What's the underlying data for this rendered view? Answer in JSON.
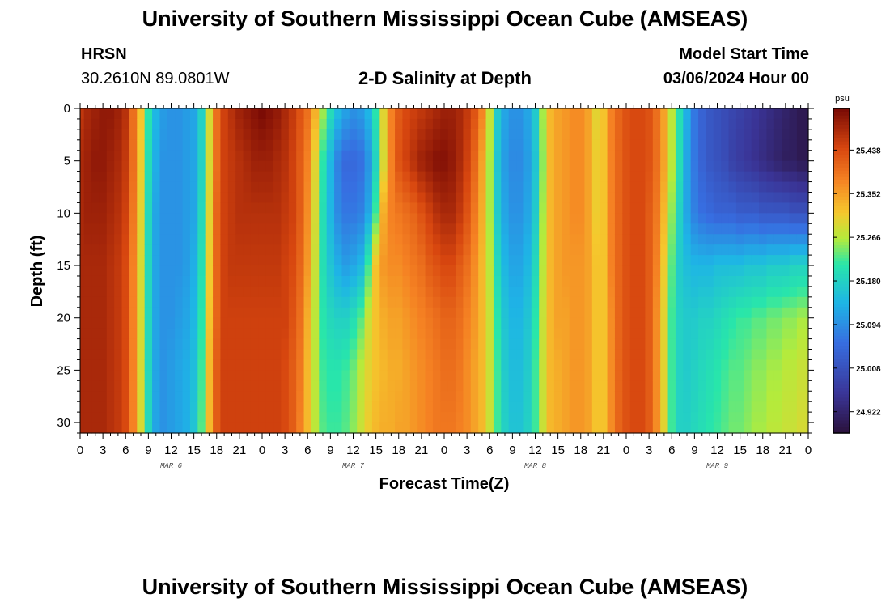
{
  "page": {
    "title": "University of Southern Mississippi Ocean Cube (AMSEAS)",
    "footer_title": "University of Southern Mississippi Ocean Cube (AMSEAS)",
    "station_name": "HRSN",
    "coordinates": "30.2610N  89.0801W",
    "model_start_label": "Model Start Time",
    "model_start_value": "03/06/2024 Hour 00"
  },
  "chart_data": {
    "type": "heatmap",
    "title": "2-D Salinity at Depth",
    "xlabel": "Forecast Time(Z)",
    "ylabel": "Depth (ft)",
    "units": "psu",
    "x_tick_labels": [
      "0",
      "3",
      "6",
      "9",
      "12",
      "15",
      "18",
      "21",
      "0",
      "3",
      "6",
      "9",
      "12",
      "15",
      "18",
      "21",
      "0",
      "3",
      "6",
      "9",
      "12",
      "15",
      "18",
      "21",
      "0",
      "3",
      "6",
      "9",
      "12",
      "15",
      "18",
      "21",
      "0"
    ],
    "x_range_hours": [
      0,
      96
    ],
    "day_labels": [
      {
        "label": "MAR 6",
        "hour": 12
      },
      {
        "label": "MAR 7",
        "hour": 36
      },
      {
        "label": "MAR 8",
        "hour": 60
      },
      {
        "label": "MAR 9",
        "hour": 84
      }
    ],
    "y_ticks": [
      0,
      5,
      10,
      15,
      20,
      25,
      30
    ],
    "y_range_ft": [
      0,
      31
    ],
    "colorbar_ticks": [
      24.922,
      25.008,
      25.094,
      25.18,
      25.266,
      25.352,
      25.438
    ],
    "colorbar_tick_labels": [
      "24.922",
      "25.008",
      "25.094",
      "25.180",
      "25.266",
      "25.352",
      "25.438"
    ],
    "color_range": [
      24.88,
      25.52
    ],
    "depth_rows_ft": [
      0,
      5,
      10,
      15,
      20,
      25,
      31
    ],
    "hour_columns": [
      0,
      1,
      2,
      3,
      4,
      5,
      6,
      7,
      8,
      9,
      10,
      11,
      12,
      13,
      14,
      15,
      16,
      17,
      18,
      19,
      20,
      21,
      22,
      23,
      24,
      25,
      26,
      27,
      28,
      29,
      30,
      31,
      32,
      33,
      34,
      35,
      36,
      37,
      38,
      39,
      40,
      41,
      42,
      43,
      44,
      45,
      46,
      47,
      48,
      49,
      50,
      51,
      52,
      53,
      54,
      55,
      56,
      57,
      58,
      59,
      60,
      61,
      62,
      63,
      64,
      65,
      66,
      67,
      68,
      69,
      70,
      71,
      72,
      73,
      74,
      75,
      76,
      77,
      78,
      79,
      80,
      81,
      82,
      83,
      84,
      85,
      86,
      87,
      88,
      89,
      90,
      91,
      92,
      93,
      94,
      95,
      96
    ],
    "salinity_psu": [
      [
        25.46,
        25.48,
        25.49,
        25.5,
        25.5,
        25.49,
        25.47,
        25.4,
        25.32,
        25.21,
        25.14,
        25.11,
        25.1,
        25.1,
        25.11,
        25.12,
        25.18,
        25.29,
        25.4,
        25.45,
        25.47,
        25.49,
        25.5,
        25.51,
        25.52,
        25.51,
        25.5,
        25.48,
        25.46,
        25.43,
        25.4,
        25.34,
        25.26,
        25.2,
        25.15,
        25.12,
        25.1,
        25.11,
        25.14,
        25.21,
        25.3,
        25.38,
        25.42,
        25.44,
        25.45,
        25.46,
        25.47,
        25.48,
        25.49,
        25.49,
        25.48,
        25.46,
        25.43,
        25.38,
        25.28,
        25.17,
        25.12,
        25.1,
        25.1,
        25.12,
        25.17,
        25.26,
        25.33,
        25.35,
        25.36,
        25.37,
        25.37,
        25.35,
        25.3,
        25.32,
        25.38,
        25.41,
        25.43,
        25.44,
        25.44,
        25.43,
        25.4,
        25.35,
        25.27,
        25.2,
        25.13,
        25.07,
        25.04,
        25.02,
        25.01,
        25.0,
        24.99,
        24.98,
        24.97,
        24.96,
        24.95,
        24.94,
        24.93,
        24.92,
        24.91,
        24.9,
        24.9
      ],
      [
        25.48,
        25.49,
        25.5,
        25.5,
        25.49,
        25.48,
        25.46,
        25.4,
        25.31,
        25.2,
        25.13,
        25.1,
        25.1,
        25.1,
        25.11,
        25.12,
        25.18,
        25.29,
        25.4,
        25.45,
        25.46,
        25.47,
        25.48,
        25.49,
        25.49,
        25.49,
        25.48,
        25.47,
        25.45,
        25.42,
        25.38,
        25.3,
        25.21,
        25.14,
        25.08,
        25.05,
        25.05,
        25.06,
        25.1,
        25.18,
        25.29,
        25.38,
        25.43,
        25.45,
        25.47,
        25.49,
        25.5,
        25.51,
        25.51,
        25.5,
        25.48,
        25.45,
        25.41,
        25.35,
        25.26,
        25.16,
        25.11,
        25.09,
        25.09,
        25.11,
        25.16,
        25.25,
        25.33,
        25.35,
        25.36,
        25.37,
        25.37,
        25.35,
        25.31,
        25.32,
        25.38,
        25.41,
        25.43,
        25.44,
        25.44,
        25.43,
        25.4,
        25.35,
        25.27,
        25.2,
        25.12,
        25.07,
        25.04,
        25.02,
        25.01,
        25.0,
        24.98,
        24.97,
        24.96,
        24.95,
        24.94,
        24.93,
        24.92,
        24.91,
        24.91,
        24.9,
        24.9
      ],
      [
        25.48,
        25.49,
        25.49,
        25.49,
        25.48,
        25.47,
        25.45,
        25.39,
        25.3,
        25.19,
        25.12,
        25.1,
        25.1,
        25.1,
        25.11,
        25.12,
        25.19,
        25.3,
        25.41,
        25.45,
        25.46,
        25.47,
        25.47,
        25.47,
        25.47,
        25.47,
        25.47,
        25.46,
        25.45,
        25.42,
        25.37,
        25.29,
        25.2,
        25.14,
        25.09,
        25.07,
        25.07,
        25.08,
        25.12,
        25.22,
        25.34,
        25.38,
        25.39,
        25.4,
        25.41,
        25.43,
        25.45,
        25.47,
        25.48,
        25.48,
        25.46,
        25.43,
        25.39,
        25.34,
        25.26,
        25.17,
        25.12,
        25.1,
        25.1,
        25.12,
        25.17,
        25.26,
        25.33,
        25.35,
        25.36,
        25.37,
        25.37,
        25.35,
        25.31,
        25.32,
        25.38,
        25.41,
        25.43,
        25.44,
        25.44,
        25.42,
        25.39,
        25.33,
        25.25,
        25.18,
        25.12,
        25.08,
        25.06,
        25.05,
        25.04,
        25.04,
        25.04,
        25.03,
        25.03,
        25.03,
        25.02,
        25.02,
        25.02,
        25.02,
        25.01,
        25.01,
        25.01
      ],
      [
        25.48,
        25.48,
        25.48,
        25.48,
        25.47,
        25.46,
        25.44,
        25.38,
        25.29,
        25.19,
        25.12,
        25.1,
        25.1,
        25.1,
        25.11,
        25.13,
        25.2,
        25.31,
        25.41,
        25.45,
        25.46,
        25.46,
        25.46,
        25.46,
        25.46,
        25.46,
        25.46,
        25.45,
        25.44,
        25.41,
        25.36,
        25.28,
        25.2,
        25.16,
        25.13,
        25.11,
        25.12,
        25.14,
        25.22,
        25.32,
        25.36,
        25.37,
        25.37,
        25.38,
        25.39,
        25.4,
        25.42,
        25.43,
        25.44,
        25.44,
        25.42,
        25.4,
        25.37,
        25.33,
        25.27,
        25.19,
        25.14,
        25.12,
        25.12,
        25.14,
        25.19,
        25.27,
        25.33,
        25.35,
        25.36,
        25.36,
        25.36,
        25.35,
        25.32,
        25.32,
        25.38,
        25.41,
        25.43,
        25.44,
        25.44,
        25.42,
        25.38,
        25.31,
        25.23,
        25.17,
        25.15,
        25.14,
        25.14,
        25.14,
        25.15,
        25.15,
        25.15,
        25.15,
        25.16,
        25.16,
        25.16,
        25.17,
        25.17,
        25.17,
        25.18,
        25.18,
        25.18
      ],
      [
        25.48,
        25.48,
        25.48,
        25.48,
        25.47,
        25.46,
        25.44,
        25.38,
        25.29,
        25.19,
        25.12,
        25.1,
        25.1,
        25.11,
        25.12,
        25.14,
        25.21,
        25.32,
        25.41,
        25.45,
        25.45,
        25.45,
        25.45,
        25.45,
        25.45,
        25.45,
        25.45,
        25.45,
        25.43,
        25.4,
        25.34,
        25.27,
        25.21,
        25.19,
        25.18,
        25.18,
        25.2,
        25.23,
        25.28,
        25.32,
        25.34,
        25.35,
        25.35,
        25.36,
        25.37,
        25.38,
        25.39,
        25.4,
        25.41,
        25.41,
        25.4,
        25.38,
        25.36,
        25.33,
        25.28,
        25.21,
        25.16,
        25.14,
        25.14,
        25.16,
        25.21,
        25.28,
        25.33,
        25.35,
        25.35,
        25.36,
        25.36,
        25.35,
        25.32,
        25.32,
        25.37,
        25.41,
        25.43,
        25.44,
        25.44,
        25.42,
        25.37,
        25.3,
        25.22,
        25.18,
        25.17,
        25.17,
        25.18,
        25.18,
        25.19,
        25.2,
        25.21,
        25.22,
        25.22,
        25.23,
        25.23,
        25.24,
        25.24,
        25.25,
        25.25,
        25.26,
        25.26
      ],
      [
        25.48,
        25.48,
        25.48,
        25.48,
        25.47,
        25.46,
        25.44,
        25.38,
        25.29,
        25.19,
        25.12,
        25.1,
        25.11,
        25.12,
        25.13,
        25.15,
        25.22,
        25.33,
        25.42,
        25.45,
        25.45,
        25.45,
        25.45,
        25.45,
        25.45,
        25.45,
        25.45,
        25.44,
        25.42,
        25.39,
        25.33,
        25.27,
        25.22,
        25.21,
        25.21,
        25.22,
        25.24,
        25.27,
        25.3,
        25.32,
        25.33,
        25.34,
        25.34,
        25.35,
        25.36,
        25.37,
        25.38,
        25.39,
        25.4,
        25.4,
        25.39,
        25.37,
        25.35,
        25.33,
        25.28,
        25.22,
        25.17,
        25.15,
        25.15,
        25.17,
        25.22,
        25.28,
        25.33,
        25.34,
        25.35,
        25.36,
        25.36,
        25.35,
        25.32,
        25.32,
        25.37,
        25.41,
        25.43,
        25.44,
        25.44,
        25.42,
        25.37,
        25.3,
        25.22,
        25.18,
        25.17,
        25.18,
        25.19,
        25.2,
        25.21,
        25.22,
        25.23,
        25.23,
        25.24,
        25.25,
        25.25,
        25.26,
        25.26,
        25.27,
        25.27,
        25.28,
        25.28
      ],
      [
        25.48,
        25.48,
        25.48,
        25.48,
        25.47,
        25.46,
        25.44,
        25.38,
        25.29,
        25.19,
        25.12,
        25.1,
        25.11,
        25.12,
        25.13,
        25.16,
        25.23,
        25.33,
        25.42,
        25.45,
        25.45,
        25.45,
        25.45,
        25.45,
        25.45,
        25.45,
        25.45,
        25.44,
        25.42,
        25.38,
        25.33,
        25.27,
        25.23,
        25.22,
        25.22,
        25.23,
        25.25,
        25.28,
        25.31,
        25.33,
        25.34,
        25.34,
        25.35,
        25.35,
        25.36,
        25.37,
        25.38,
        25.39,
        25.39,
        25.39,
        25.38,
        25.37,
        25.35,
        25.33,
        25.28,
        25.22,
        25.18,
        25.16,
        25.16,
        25.18,
        25.22,
        25.28,
        25.33,
        25.34,
        25.35,
        25.36,
        25.36,
        25.35,
        25.32,
        25.32,
        25.37,
        25.41,
        25.43,
        25.44,
        25.44,
        25.42,
        25.37,
        25.3,
        25.22,
        25.18,
        25.18,
        25.19,
        25.2,
        25.21,
        25.22,
        25.23,
        25.24,
        25.24,
        25.25,
        25.26,
        25.26,
        25.27,
        25.27,
        25.28,
        25.28,
        25.29,
        25.29
      ]
    ]
  }
}
